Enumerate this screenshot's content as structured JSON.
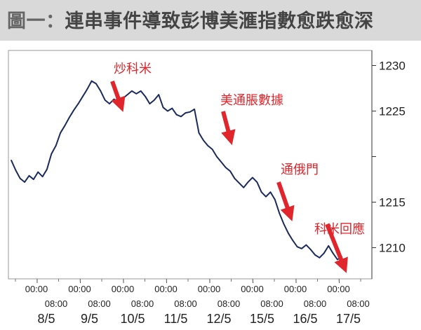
{
  "title": {
    "prefix": "圖一：",
    "text": "連串事件導致彭博美滙指數愈跌愈深"
  },
  "colors": {
    "title_bg": "#d9d9d9",
    "title_text": "#444444",
    "line": "#1b2a5c",
    "annotation": "#e0262c"
  },
  "chart_data": {
    "type": "line",
    "title": "連串事件導致彭博美滙指數愈跌愈深",
    "xlabel": "",
    "ylabel": "",
    "ylim": [
      1207.5,
      1231.5
    ],
    "yticks": [
      1210,
      1215,
      1225,
      1230
    ],
    "grid": false,
    "x_ticks_top": [
      "00:00",
      "00:00",
      "00:00",
      "00:00",
      "00:00",
      "00:00",
      "00:00",
      "00:00"
    ],
    "x_ticks_mid": [
      "08:00",
      "08:00",
      "08:00",
      "08:00",
      "08:00",
      "08:00",
      "08:00",
      "08:00"
    ],
    "x_ticks_date": [
      "8/5",
      "9/5",
      "10/5",
      "11/5",
      "12/5",
      "15/5",
      "16/5",
      "17/5"
    ],
    "series": [
      {
        "x": [
          0,
          0.1,
          0.2,
          0.3,
          0.4,
          0.5,
          0.6,
          0.7,
          0.8,
          0.9,
          1.0,
          1.1,
          1.2,
          1.3,
          1.4,
          1.5,
          1.6,
          1.7,
          1.8,
          1.9,
          2.0,
          2.1,
          2.2,
          2.3,
          2.4,
          2.5,
          2.6,
          2.7,
          2.8,
          2.9,
          3.0,
          3.1,
          3.2,
          3.3,
          3.4,
          3.5,
          3.6,
          3.7,
          3.8,
          3.9,
          4.0,
          4.1,
          4.2,
          4.3,
          4.4,
          4.5,
          4.6,
          4.7,
          4.8,
          4.9,
          5.0,
          5.1,
          5.2,
          5.3,
          5.4,
          5.5,
          5.6,
          5.7,
          5.8,
          5.9,
          6.0,
          6.1,
          6.2,
          6.3,
          6.4,
          6.5,
          6.6,
          6.7,
          6.8,
          6.9,
          7.0,
          7.1,
          7.2,
          7.3,
          7.4
        ],
        "values": [
          1219.6,
          1218.5,
          1217.6,
          1217.2,
          1217.9,
          1217.5,
          1218.3,
          1217.8,
          1218.6,
          1220.3,
          1221.2,
          1222.6,
          1223.4,
          1224.3,
          1225.1,
          1225.8,
          1226.6,
          1227.4,
          1228.3,
          1228.0,
          1227.2,
          1226.2,
          1225.8,
          1226.3,
          1226.0,
          1226.4,
          1226.8,
          1227.2,
          1226.9,
          1227.2,
          1226.6,
          1225.8,
          1226.2,
          1226.8,
          1225.4,
          1225.0,
          1225.3,
          1224.6,
          1224.4,
          1224.8,
          1224.9,
          1225.2,
          1222.6,
          1221.8,
          1221.2,
          1220.8,
          1220.0,
          1219.4,
          1218.8,
          1218.4,
          1217.6,
          1217.1,
          1216.6,
          1217.2,
          1217.7,
          1217.2,
          1216.1,
          1215.6,
          1216.1,
          1215.3,
          1213.8,
          1212.6,
          1211.6,
          1210.8,
          1210.1,
          1209.9,
          1210.3,
          1209.8,
          1209.2,
          1208.9,
          1209.4,
          1210.2,
          1209.4,
          1208.7,
          1209.0
        ]
      }
    ],
    "annotations": [
      {
        "text": "炒科米"
      },
      {
        "text": "美通脹數據"
      },
      {
        "text": "通俄門"
      },
      {
        "text": "科米回應"
      }
    ]
  }
}
